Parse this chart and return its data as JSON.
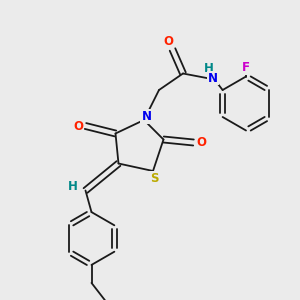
{
  "bg_color": "#ebebeb",
  "bond_color": "#1a1a1a",
  "atom_colors": {
    "N": "#0000ee",
    "O": "#ff2200",
    "S": "#bbaa00",
    "F": "#cc00cc",
    "H_NH": "#008888",
    "H_CH": "#008888"
  },
  "font_size_atom": 8.5,
  "lw": 1.3
}
